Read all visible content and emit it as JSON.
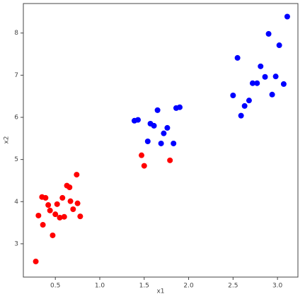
{
  "chart_data": {
    "type": "scatter",
    "xlabel": "x1",
    "ylabel": "x2",
    "xlim": [
      0.14,
      3.23
    ],
    "ylim": [
      2.21,
      8.7
    ],
    "xticks": [
      0.5,
      {
        "value": 1,
        "label": "1.0"
      },
      1.5,
      {
        "value": 2,
        "label": "2.0"
      },
      2.5,
      {
        "value": 3,
        "label": "3.0"
      }
    ],
    "yticks": [
      3,
      4,
      5,
      6,
      7,
      8
    ],
    "series": [
      {
        "color": "#ff0000",
        "x": [
          0.28,
          0.31,
          0.35,
          0.39,
          0.36,
          0.42,
          0.44,
          0.47,
          0.5,
          0.52,
          0.55,
          0.58,
          0.6,
          0.63,
          0.66,
          0.67,
          0.7,
          0.74,
          0.75,
          0.78,
          1.47,
          1.5,
          1.79
        ],
        "values": [
          2.58,
          3.67,
          4.11,
          4.09,
          3.45,
          3.92,
          3.79,
          3.2,
          3.7,
          3.94,
          3.62,
          4.09,
          3.64,
          4.38,
          4.34,
          4.01,
          3.82,
          4.64,
          3.96,
          3.65,
          5.1,
          4.85,
          4.98
        ]
      },
      {
        "color": "#0000ff",
        "x": [
          1.39,
          1.43,
          1.54,
          1.57,
          1.61,
          1.65,
          1.69,
          1.72,
          1.76,
          1.83,
          1.86,
          1.9,
          2.5,
          2.55,
          2.59,
          2.63,
          2.68,
          2.72,
          2.77,
          2.81,
          2.86,
          2.9,
          2.94,
          2.98,
          3.02,
          3.07,
          3.11
        ],
        "values": [
          5.92,
          5.94,
          5.43,
          5.85,
          5.8,
          6.17,
          5.38,
          5.62,
          5.75,
          5.38,
          6.22,
          6.24,
          6.52,
          7.41,
          6.04,
          6.27,
          6.4,
          6.81,
          6.81,
          7.21,
          6.96,
          7.98,
          6.54,
          6.97,
          7.71,
          6.79,
          8.39
        ]
      }
    ]
  }
}
